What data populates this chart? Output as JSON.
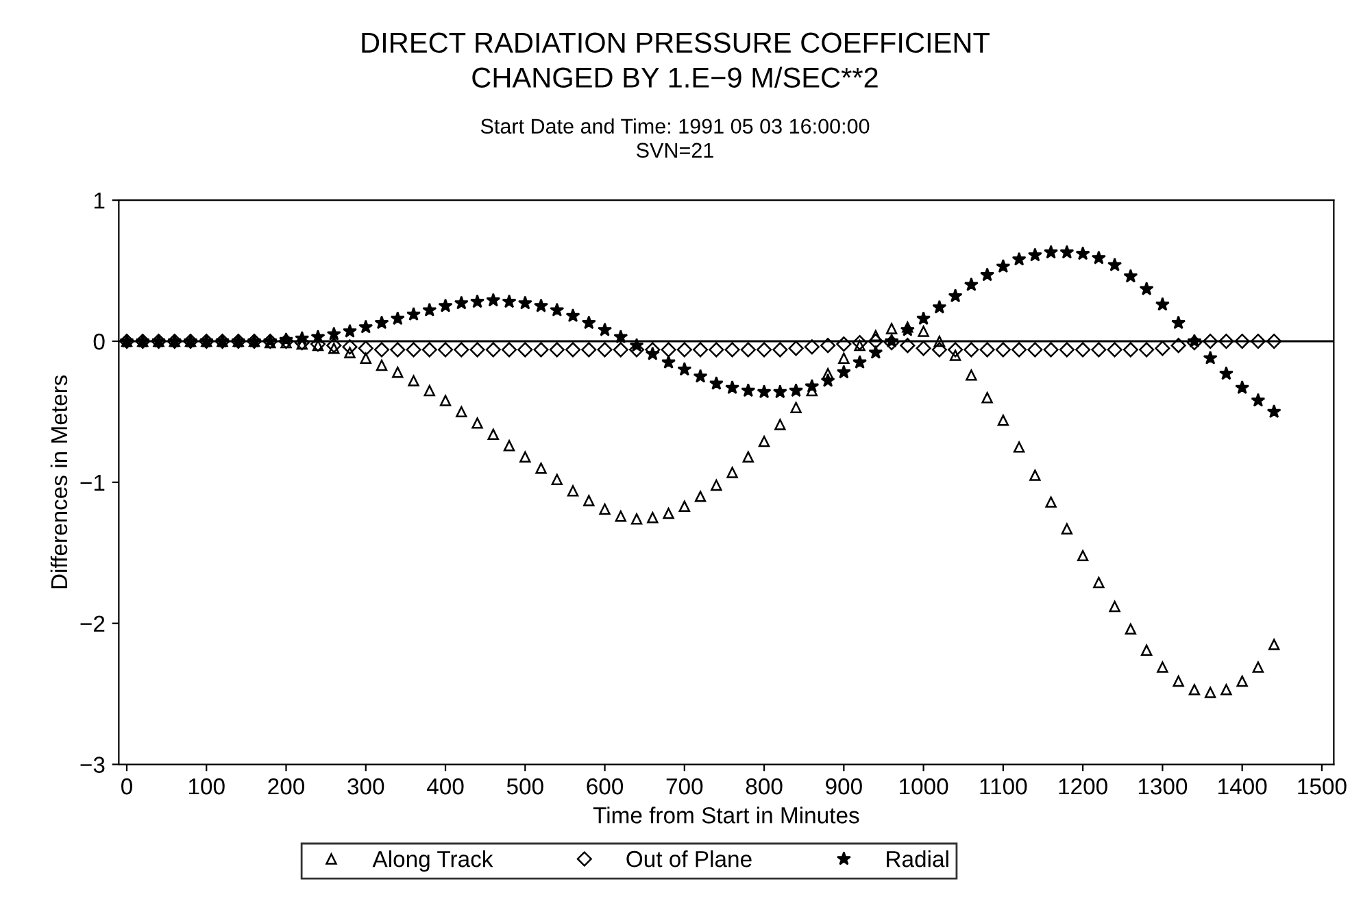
{
  "chart_data": {
    "type": "scatter",
    "title": "DIRECT RADIATION PRESSURE COEFFICIENT\nCHANGED BY 1.E−9 M/SEC**2",
    "subtitle": "Start Date and Time: 1991 05 03 16:00:00\nSVN=21",
    "xlabel": "Time from Start in Minutes",
    "ylabel": "Differences in Meters",
    "x": [
      0,
      20,
      40,
      60,
      80,
      100,
      120,
      140,
      160,
      180,
      200,
      220,
      240,
      260,
      280,
      300,
      320,
      340,
      360,
      380,
      400,
      420,
      440,
      460,
      480,
      500,
      520,
      540,
      560,
      580,
      600,
      620,
      640,
      660,
      680,
      700,
      720,
      740,
      760,
      780,
      800,
      820,
      840,
      860,
      880,
      900,
      920,
      940,
      960,
      980,
      1000,
      1020,
      1040,
      1060,
      1080,
      1100,
      1120,
      1140,
      1160,
      1180,
      1200,
      1220,
      1240,
      1260,
      1280,
      1300,
      1320,
      1340,
      1360,
      1380,
      1400,
      1420,
      1440
    ],
    "series": [
      {
        "name": "Along Track",
        "color": "#000000",
        "marker": "triangle",
        "values": [
          0,
          0,
          0,
          0,
          0,
          0,
          0,
          0,
          0,
          -0.01,
          -0.01,
          -0.02,
          -0.03,
          -0.05,
          -0.08,
          -0.12,
          -0.17,
          -0.22,
          -0.28,
          -0.35,
          -0.42,
          -0.5,
          -0.58,
          -0.66,
          -0.74,
          -0.82,
          -0.9,
          -0.98,
          -1.06,
          -1.13,
          -1.19,
          -1.24,
          -1.26,
          -1.25,
          -1.22,
          -1.17,
          -1.1,
          -1.02,
          -0.93,
          -0.82,
          -0.71,
          -0.59,
          -0.47,
          -0.35,
          -0.23,
          -0.12,
          -0.03,
          0.04,
          0.09,
          0.1,
          0.07,
          0.0,
          -0.1,
          -0.24,
          -0.4,
          -0.56,
          -0.75,
          -0.95,
          -1.14,
          -1.33,
          -1.52,
          -1.71,
          -1.88,
          -2.04,
          -2.19,
          -2.31,
          -2.41,
          -2.47,
          -2.49,
          -2.47,
          -2.41,
          -2.31,
          -2.15
        ]
      },
      {
        "name": "Out of Plane",
        "color": "#000000",
        "marker": "diamond",
        "values": [
          0,
          0,
          0,
          0,
          0,
          0,
          0,
          0,
          0,
          0,
          0,
          -0.01,
          -0.02,
          -0.03,
          -0.04,
          -0.05,
          -0.06,
          -0.06,
          -0.06,
          -0.06,
          -0.06,
          -0.06,
          -0.06,
          -0.06,
          -0.06,
          -0.06,
          -0.06,
          -0.06,
          -0.06,
          -0.06,
          -0.06,
          -0.06,
          -0.06,
          -0.06,
          -0.06,
          -0.06,
          -0.06,
          -0.06,
          -0.06,
          -0.06,
          -0.06,
          -0.06,
          -0.05,
          -0.04,
          -0.03,
          -0.02,
          -0.01,
          0,
          -0.01,
          -0.03,
          -0.05,
          -0.06,
          -0.06,
          -0.06,
          -0.06,
          -0.06,
          -0.06,
          -0.06,
          -0.06,
          -0.06,
          -0.06,
          -0.06,
          -0.06,
          -0.06,
          -0.06,
          -0.05,
          -0.03,
          -0.01,
          0,
          0,
          0,
          0,
          0
        ]
      },
      {
        "name": "Radial",
        "color": "#000000",
        "marker": "star",
        "values": [
          0,
          0,
          0,
          0,
          0,
          0,
          0,
          0,
          0,
          0,
          0.01,
          0.02,
          0.03,
          0.05,
          0.07,
          0.1,
          0.13,
          0.16,
          0.19,
          0.22,
          0.25,
          0.27,
          0.28,
          0.29,
          0.28,
          0.27,
          0.25,
          0.22,
          0.18,
          0.13,
          0.08,
          0.03,
          -0.03,
          -0.09,
          -0.15,
          -0.2,
          -0.25,
          -0.3,
          -0.33,
          -0.35,
          -0.36,
          -0.36,
          -0.35,
          -0.32,
          -0.28,
          -0.22,
          -0.15,
          -0.08,
          0.0,
          0.08,
          0.16,
          0.24,
          0.32,
          0.4,
          0.47,
          0.53,
          0.58,
          0.61,
          0.63,
          0.63,
          0.62,
          0.59,
          0.54,
          0.46,
          0.37,
          0.26,
          0.13,
          0.0,
          -0.12,
          -0.23,
          -0.33,
          -0.42,
          -0.5
        ]
      }
    ],
    "xlim": [
      -10,
      1515
    ],
    "xticks": [
      0,
      100,
      200,
      300,
      400,
      500,
      600,
      700,
      800,
      900,
      1000,
      1100,
      1200,
      1300,
      1400,
      1500
    ],
    "ylim": [
      -3,
      1
    ],
    "yticks": [
      {
        "value": -3,
        "label": "−3"
      },
      {
        "value": -2,
        "label": "−2"
      },
      {
        "value": -1,
        "label": "−1"
      },
      0,
      1
    ],
    "ref_lines": [
      {
        "axis": "y",
        "value": 0,
        "label": null,
        "color": "#000000"
      }
    ],
    "grid": false,
    "legend": "bottom"
  }
}
